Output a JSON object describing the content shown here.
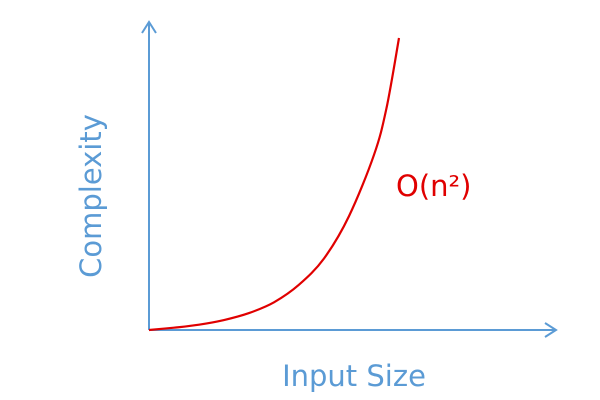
{
  "chart_data": {
    "type": "line",
    "title": "",
    "xlabel": "Input Size",
    "ylabel": "Complexity",
    "grid": false,
    "legend": "none",
    "series": [
      {
        "name": "O(n²)",
        "color": "#e00000",
        "points": [
          [
            0.0,
            0.0
          ],
          [
            0.1,
            0.008
          ],
          [
            0.2,
            0.018
          ],
          [
            0.3,
            0.034
          ],
          [
            0.4,
            0.058
          ],
          [
            0.5,
            0.095
          ],
          [
            0.6,
            0.155
          ],
          [
            0.7,
            0.245
          ],
          [
            0.8,
            0.39
          ],
          [
            0.9,
            0.6
          ],
          [
            0.95,
            0.76
          ],
          [
            1.0,
            1.0
          ]
        ]
      }
    ],
    "annotations": [
      {
        "text": "O(n²)",
        "series": 0
      }
    ]
  },
  "colors": {
    "axis": "#5b9bd5",
    "curve": "#e00000",
    "label": "#5b9bd5",
    "annotation": "#e00000"
  }
}
